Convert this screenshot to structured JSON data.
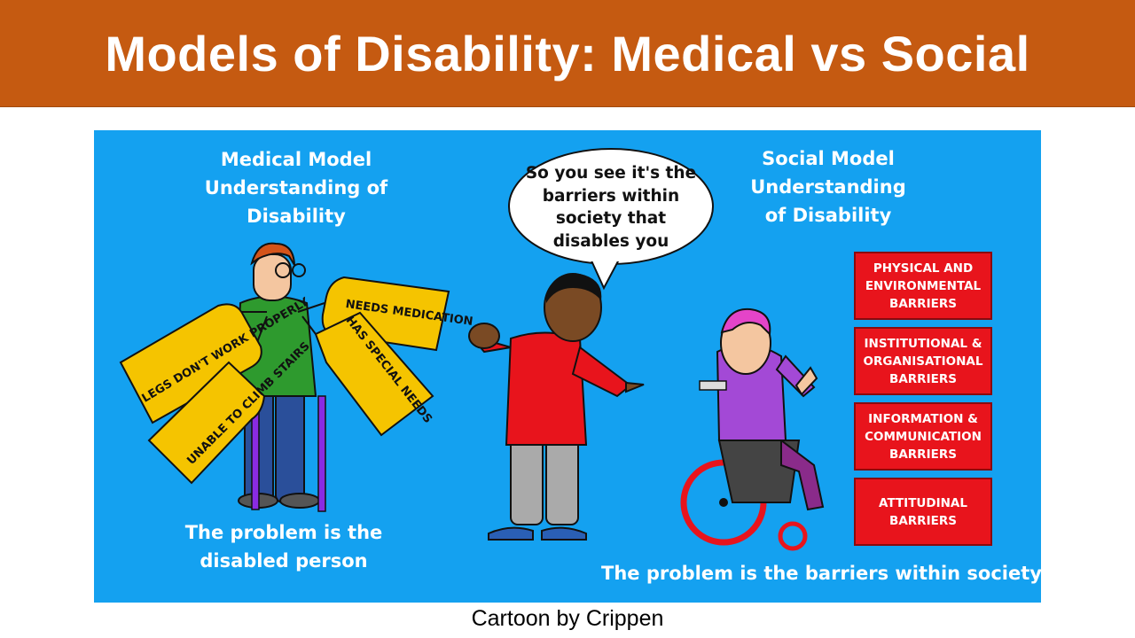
{
  "slide": {
    "title": "Models of Disability: Medical vs Social",
    "caption": "Cartoon by Crippen"
  },
  "cartoon": {
    "medical_heading": "Medical Model Understanding of Disability",
    "social_heading": "Social Model Understanding of Disability",
    "speech_bubble": "So you see it's the barriers within society that disables you",
    "medical_problem": "The problem is the disabled person",
    "social_problem": "The problem is the barriers within society",
    "labels": [
      "LEGS DON'T WORK PROPERLY",
      "UNABLE TO CLIMB STAIRS",
      "NEEDS MEDICATION",
      "HAS SPECIAL NEEDS"
    ],
    "barriers": [
      "PHYSICAL AND ENVIRONMENTAL BARRIERS",
      "INSTITUTIONAL & ORGANISATIONAL BARRIERS",
      "INFORMATION & COMMUNICATION BARRIERS",
      "ATTITUDINAL BARRIERS"
    ],
    "colors": {
      "title_bar": "#c55a11",
      "cartoon_background": "#14a1f0",
      "tag_fill": "#f5c400",
      "barrier_fill": "#e8141c"
    }
  }
}
